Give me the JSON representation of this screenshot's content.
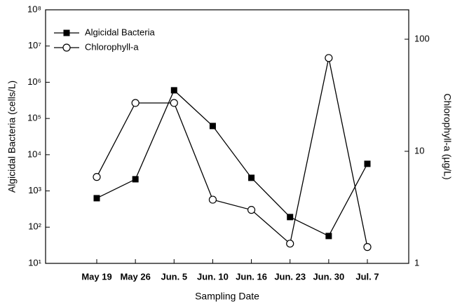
{
  "chart_data": {
    "type": "line",
    "x_label": "Sampling Date",
    "y_label": "Algicidal Bacteria (cells/L)",
    "y2_label": "Chlorophyll-a (µg/L)",
    "categories": [
      "May 19",
      "May 26",
      "Jun. 5",
      "Jun. 10",
      "Jun. 16",
      "Jun. 23",
      "Jun. 30",
      "Jul. 7"
    ],
    "series": [
      {
        "name": "Algicidal Bacteria",
        "color": "#000000",
        "marker": "square",
        "values": [
          630,
          2100,
          600000,
          62000,
          2300,
          190,
          57,
          5600
        ]
      },
      {
        "name": "Chlorophyll-a",
        "color": "#000000",
        "marker": "circle",
        "axis": "y2",
        "values": [
          5.9,
          27,
          27,
          3.7,
          3.0,
          1.5,
          68,
          1.4
        ]
      }
    ],
    "y_scale": "log",
    "y2_scale": "log",
    "ylim": [
      10,
      100000000
    ],
    "yticks": [
      {
        "value": 10,
        "label": "10¹"
      },
      {
        "value": 100,
        "label": "10²"
      },
      {
        "value": 1000,
        "label": "10³"
      },
      {
        "value": 10000,
        "label": "10⁴"
      },
      {
        "value": 100000,
        "label": "10⁵"
      },
      {
        "value": 1000000,
        "label": "10⁶"
      },
      {
        "value": 10000000,
        "label": "10⁷"
      },
      {
        "value": 100000000,
        "label": "10⁸"
      }
    ],
    "y2lim": [
      1,
      183
    ],
    "y2ticks": [
      1,
      10,
      100
    ],
    "grid": false,
    "legend_position": "upper-left"
  }
}
